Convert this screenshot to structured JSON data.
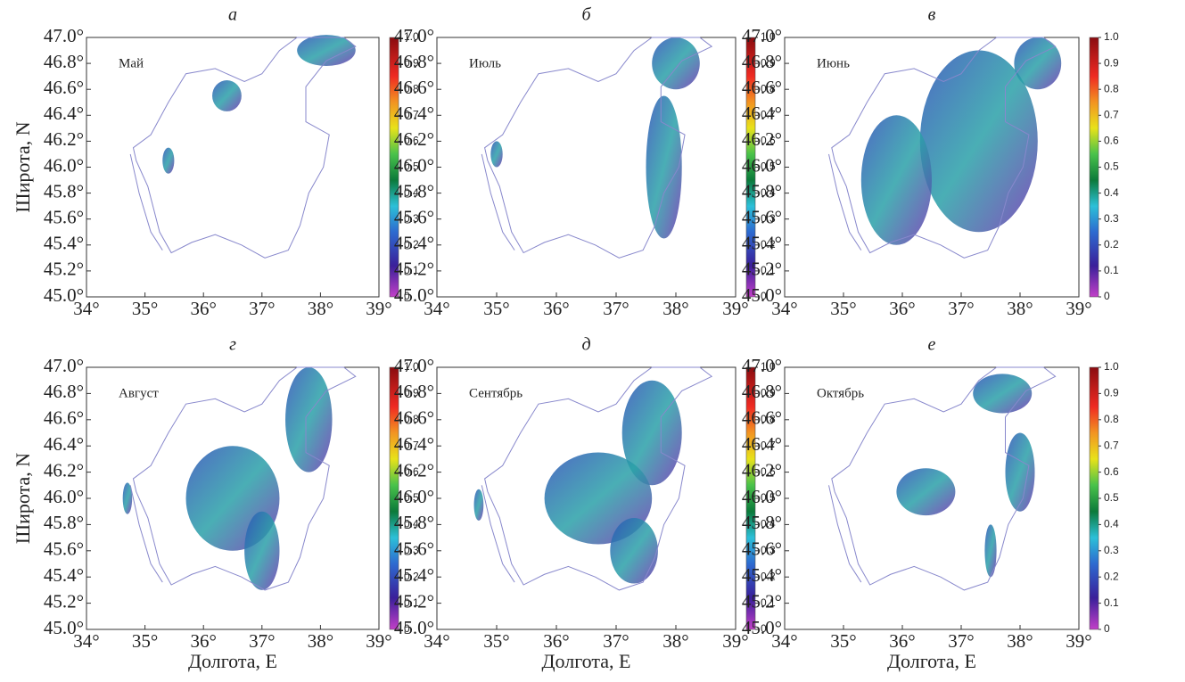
{
  "y_axis_label": "Широта, N",
  "x_axis_label": "Долгота, E",
  "xlim": [
    34,
    39
  ],
  "ylim": [
    45,
    47
  ],
  "xticks": [
    {
      "value": 34,
      "label": "34°"
    },
    {
      "value": 35,
      "label": "35°"
    },
    {
      "value": 36,
      "label": "36°"
    },
    {
      "value": 37,
      "label": "37°"
    },
    {
      "value": 38,
      "label": "38°"
    },
    {
      "value": 39,
      "label": "39°"
    }
  ],
  "yticks": [
    {
      "value": 45,
      "label": "45.0°"
    },
    {
      "value": 45.2,
      "label": "45.2°"
    },
    {
      "value": 45.4,
      "label": "45.4°"
    },
    {
      "value": 45.6,
      "label": "45.6°"
    },
    {
      "value": 45.8,
      "label": "45.8°"
    },
    {
      "value": 46,
      "label": "46.0°"
    },
    {
      "value": 46.2,
      "label": "46.2°"
    },
    {
      "value": 46.4,
      "label": "46.4°"
    },
    {
      "value": 46.6,
      "label": "46.6°"
    },
    {
      "value": 46.8,
      "label": "46.8°"
    },
    {
      "value": 47,
      "label": "47.0°"
    }
  ],
  "colorbar": {
    "lim": [
      0,
      1
    ],
    "ticks": [
      0,
      0.1,
      0.2,
      0.3,
      0.4,
      0.5,
      0.6,
      0.7,
      0.8,
      0.9,
      {
        "value": 1,
        "label": "1.0"
      }
    ]
  },
  "panels": [
    {
      "letter": "а",
      "month": "Май"
    },
    {
      "letter": "б",
      "month": "Июль"
    },
    {
      "letter": "в",
      "month": "Июнь"
    },
    {
      "letter": "г",
      "month": "Август"
    },
    {
      "letter": "д",
      "month": "Сентябрь"
    },
    {
      "letter": "е",
      "month": "Октябрь"
    }
  ]
}
